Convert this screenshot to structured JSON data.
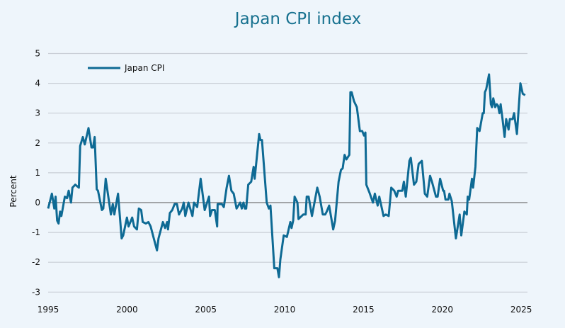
{
  "chart_data": {
    "type": "line",
    "title": "Japan CPI index",
    "ylabel": "Percent",
    "xlabel": "",
    "ylim": [
      -3,
      5
    ],
    "xlim": [
      1995,
      2025.4
    ],
    "yticks": [
      "5",
      "4",
      "3",
      "2",
      "1",
      "0",
      "-1",
      "-2",
      "-3"
    ],
    "xticks": [
      "1995",
      "2000",
      "2005",
      "2010",
      "2015",
      "2020",
      "2025"
    ],
    "grid": true,
    "legend_position": "top-left",
    "colors": {
      "line": "#0e6a94",
      "grid": "#c9ced6",
      "zero_line": "#555555",
      "title": "#17718f",
      "background": "#eef5fb"
    },
    "series": [
      {
        "name": "Japan CPI",
        "points": [
          [
            1995.0,
            -0.2
          ],
          [
            1995.24,
            0.3
          ],
          [
            1995.39,
            -0.2
          ],
          [
            1995.47,
            0.2
          ],
          [
            1995.57,
            -0.6
          ],
          [
            1995.66,
            -0.7
          ],
          [
            1995.76,
            -0.3
          ],
          [
            1995.84,
            -0.45
          ],
          [
            1996.06,
            0.2
          ],
          [
            1996.2,
            0.15
          ],
          [
            1996.3,
            0.4
          ],
          [
            1996.45,
            0.0
          ],
          [
            1996.54,
            0.5
          ],
          [
            1996.72,
            0.6
          ],
          [
            1996.95,
            0.5
          ],
          [
            1997.03,
            1.9
          ],
          [
            1997.2,
            2.2
          ],
          [
            1997.32,
            1.95
          ],
          [
            1997.56,
            2.5
          ],
          [
            1997.75,
            1.85
          ],
          [
            1997.85,
            1.85
          ],
          [
            1997.95,
            2.2
          ],
          [
            1998.08,
            0.45
          ],
          [
            1998.16,
            0.4
          ],
          [
            1998.41,
            -0.25
          ],
          [
            1998.5,
            -0.2
          ],
          [
            1998.65,
            0.8
          ],
          [
            1998.98,
            -0.4
          ],
          [
            1999.1,
            -0.05
          ],
          [
            1999.2,
            -0.4
          ],
          [
            1999.43,
            0.3
          ],
          [
            1999.66,
            -1.2
          ],
          [
            1999.76,
            -1.1
          ],
          [
            2000.0,
            -0.5
          ],
          [
            2000.1,
            -0.8
          ],
          [
            2000.33,
            -0.5
          ],
          [
            2000.45,
            -0.8
          ],
          [
            2000.63,
            -0.9
          ],
          [
            2000.75,
            -0.2
          ],
          [
            2000.9,
            -0.25
          ],
          [
            2001.0,
            -0.65
          ],
          [
            2001.2,
            -0.7
          ],
          [
            2001.36,
            -0.65
          ],
          [
            2001.5,
            -0.8
          ],
          [
            2001.7,
            -1.2
          ],
          [
            2001.9,
            -1.6
          ],
          [
            2002.0,
            -1.2
          ],
          [
            2002.28,
            -0.65
          ],
          [
            2002.42,
            -0.85
          ],
          [
            2002.55,
            -0.65
          ],
          [
            2002.6,
            -0.9
          ],
          [
            2002.72,
            -0.35
          ],
          [
            2002.87,
            -0.25
          ],
          [
            2003.02,
            -0.05
          ],
          [
            2003.17,
            -0.05
          ],
          [
            2003.3,
            -0.4
          ],
          [
            2003.5,
            -0.2
          ],
          [
            2003.6,
            0.0
          ],
          [
            2003.7,
            -0.45
          ],
          [
            2003.9,
            0.0
          ],
          [
            2004.15,
            -0.45
          ],
          [
            2004.25,
            0.0
          ],
          [
            2004.45,
            -0.15
          ],
          [
            2004.67,
            0.8
          ],
          [
            2004.93,
            -0.25
          ],
          [
            2005.2,
            0.2
          ],
          [
            2005.27,
            -0.45
          ],
          [
            2005.39,
            -0.25
          ],
          [
            2005.57,
            -0.25
          ],
          [
            2005.72,
            -0.8
          ],
          [
            2005.75,
            -0.05
          ],
          [
            2006.02,
            -0.05
          ],
          [
            2006.14,
            -0.15
          ],
          [
            2006.32,
            0.5
          ],
          [
            2006.47,
            0.9
          ],
          [
            2006.62,
            0.4
          ],
          [
            2006.77,
            0.3
          ],
          [
            2006.95,
            -0.2
          ],
          [
            2007.18,
            0.0
          ],
          [
            2007.28,
            -0.2
          ],
          [
            2007.39,
            0.0
          ],
          [
            2007.48,
            -0.2
          ],
          [
            2007.56,
            -0.2
          ],
          [
            2007.69,
            0.6
          ],
          [
            2007.88,
            0.7
          ],
          [
            2008.03,
            1.2
          ],
          [
            2008.1,
            0.8
          ],
          [
            2008.38,
            2.3
          ],
          [
            2008.46,
            2.1
          ],
          [
            2008.56,
            2.1
          ],
          [
            2008.86,
            0.0
          ],
          [
            2009.0,
            -0.2
          ],
          [
            2009.1,
            -0.1
          ],
          [
            2009.34,
            -2.2
          ],
          [
            2009.54,
            -2.2
          ],
          [
            2009.64,
            -2.5
          ],
          [
            2009.73,
            -1.9
          ],
          [
            2009.94,
            -1.1
          ],
          [
            2010.14,
            -1.15
          ],
          [
            2010.36,
            -0.65
          ],
          [
            2010.44,
            -0.85
          ],
          [
            2010.54,
            -0.6
          ],
          [
            2010.63,
            0.2
          ],
          [
            2010.81,
            0.0
          ],
          [
            2010.88,
            -0.55
          ],
          [
            2011.18,
            -0.4
          ],
          [
            2011.33,
            -0.4
          ],
          [
            2011.4,
            0.2
          ],
          [
            2011.52,
            0.2
          ],
          [
            2011.73,
            -0.45
          ],
          [
            2012.07,
            0.5
          ],
          [
            2012.22,
            0.2
          ],
          [
            2012.42,
            -0.4
          ],
          [
            2012.57,
            -0.4
          ],
          [
            2012.67,
            -0.3
          ],
          [
            2012.82,
            -0.1
          ],
          [
            2013.08,
            -0.9
          ],
          [
            2013.2,
            -0.6
          ],
          [
            2013.42,
            0.7
          ],
          [
            2013.57,
            1.1
          ],
          [
            2013.68,
            1.15
          ],
          [
            2013.8,
            1.6
          ],
          [
            2013.92,
            1.45
          ],
          [
            2014.1,
            1.6
          ],
          [
            2014.17,
            3.7
          ],
          [
            2014.25,
            3.7
          ],
          [
            2014.4,
            3.4
          ],
          [
            2014.58,
            3.2
          ],
          [
            2014.77,
            2.4
          ],
          [
            2014.92,
            2.4
          ],
          [
            2015.03,
            2.25
          ],
          [
            2015.12,
            2.35
          ],
          [
            2015.18,
            0.6
          ],
          [
            2015.37,
            0.35
          ],
          [
            2015.6,
            0.0
          ],
          [
            2015.72,
            0.3
          ],
          [
            2015.9,
            -0.1
          ],
          [
            2016.0,
            0.2
          ],
          [
            2016.27,
            -0.45
          ],
          [
            2016.42,
            -0.4
          ],
          [
            2016.6,
            -0.45
          ],
          [
            2016.76,
            0.5
          ],
          [
            2016.95,
            0.4
          ],
          [
            2017.1,
            0.2
          ],
          [
            2017.2,
            0.4
          ],
          [
            2017.46,
            0.4
          ],
          [
            2017.56,
            0.7
          ],
          [
            2017.68,
            0.2
          ],
          [
            2017.91,
            1.4
          ],
          [
            2018.0,
            1.5
          ],
          [
            2018.2,
            0.6
          ],
          [
            2018.35,
            0.7
          ],
          [
            2018.5,
            1.3
          ],
          [
            2018.7,
            1.4
          ],
          [
            2018.89,
            0.3
          ],
          [
            2019.04,
            0.2
          ],
          [
            2019.22,
            0.9
          ],
          [
            2019.34,
            0.7
          ],
          [
            2019.6,
            0.2
          ],
          [
            2019.7,
            0.2
          ],
          [
            2019.86,
            0.8
          ],
          [
            2020.05,
            0.4
          ],
          [
            2020.11,
            0.4
          ],
          [
            2020.2,
            0.1
          ],
          [
            2020.38,
            0.1
          ],
          [
            2020.45,
            0.3
          ],
          [
            2020.6,
            0.05
          ],
          [
            2020.86,
            -1.2
          ],
          [
            2021.1,
            -0.4
          ],
          [
            2021.2,
            -1.1
          ],
          [
            2021.4,
            -0.3
          ],
          [
            2021.55,
            -0.4
          ],
          [
            2021.61,
            0.2
          ],
          [
            2021.7,
            0.1
          ],
          [
            2021.88,
            0.8
          ],
          [
            2021.95,
            0.5
          ],
          [
            2022.1,
            1.2
          ],
          [
            2022.21,
            2.5
          ],
          [
            2022.36,
            2.4
          ],
          [
            2022.56,
            3.0
          ],
          [
            2022.63,
            3.0
          ],
          [
            2022.7,
            3.7
          ],
          [
            2022.78,
            3.8
          ],
          [
            2022.96,
            4.3
          ],
          [
            2023.08,
            3.3
          ],
          [
            2023.15,
            3.2
          ],
          [
            2023.23,
            3.5
          ],
          [
            2023.35,
            3.2
          ],
          [
            2023.45,
            3.3
          ],
          [
            2023.53,
            3.25
          ],
          [
            2023.62,
            3.0
          ],
          [
            2023.7,
            3.3
          ],
          [
            2023.83,
            2.75
          ],
          [
            2023.95,
            2.2
          ],
          [
            2024.05,
            2.8
          ],
          [
            2024.2,
            2.45
          ],
          [
            2024.28,
            2.8
          ],
          [
            2024.46,
            2.8
          ],
          [
            2024.55,
            3.0
          ],
          [
            2024.73,
            2.3
          ],
          [
            2024.95,
            4.0
          ],
          [
            2025.1,
            3.65
          ],
          [
            2025.25,
            3.6
          ]
        ]
      }
    ]
  }
}
